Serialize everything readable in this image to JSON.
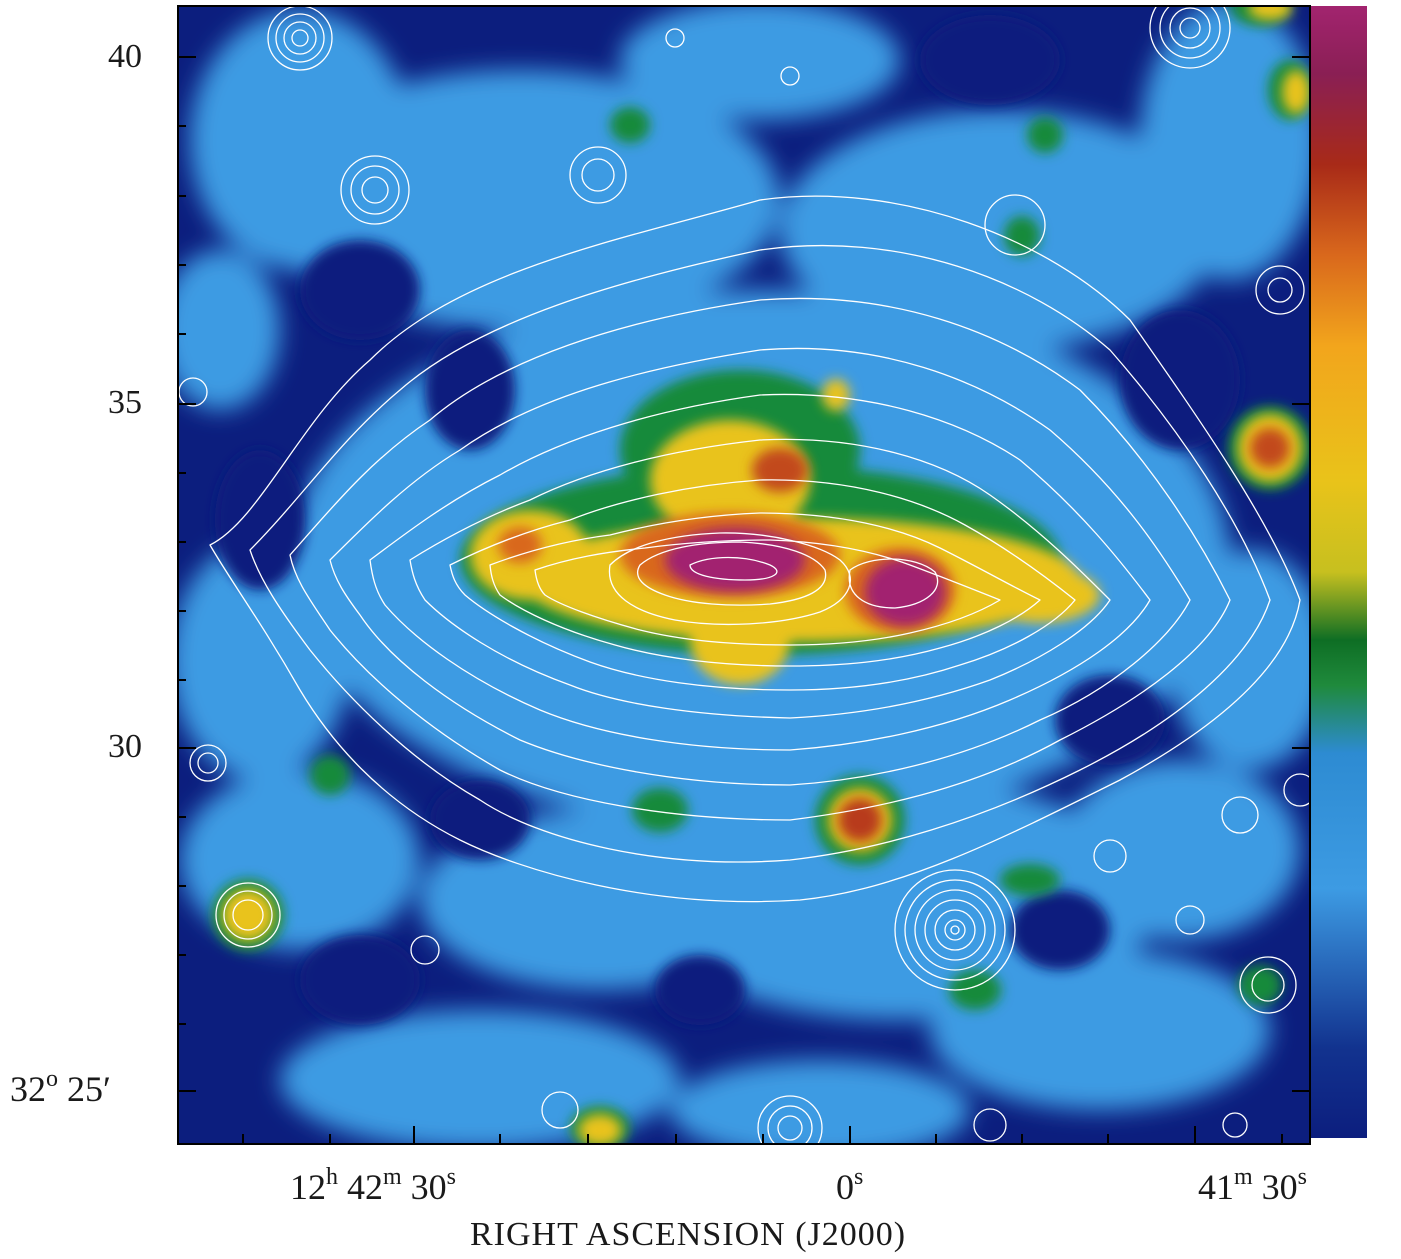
{
  "figure": {
    "x_axis_label": "RIGHT ASCENSION (J2000)",
    "dec_corner_label": {
      "deg": "32",
      "deg_sup": "o",
      "min": "25′"
    },
    "y_tick_labels": [
      "40",
      "35",
      "30"
    ],
    "x_tick_labels": [
      {
        "main": "12",
        "sup": "h",
        "main2": "42",
        "sup2": "m",
        "main3": "30",
        "sup3": "s"
      },
      {
        "main": "0",
        "sup": "s"
      },
      {
        "main": "41",
        "sup": "m",
        "main2": "30",
        "sup2": "s"
      }
    ],
    "colorbar": {
      "colormap": [
        "#0c1e7e",
        "#1f63c2",
        "#3d9be3",
        "#1f8a3c",
        "#0e6e24",
        "#e9c31a",
        "#f2a51c",
        "#d9681c",
        "#a82a18",
        "#8a1f54",
        "#a2246f"
      ]
    },
    "colors": {
      "background": "#0c1e7e",
      "contours": "#ffffff",
      "frame": "#000000"
    }
  }
}
